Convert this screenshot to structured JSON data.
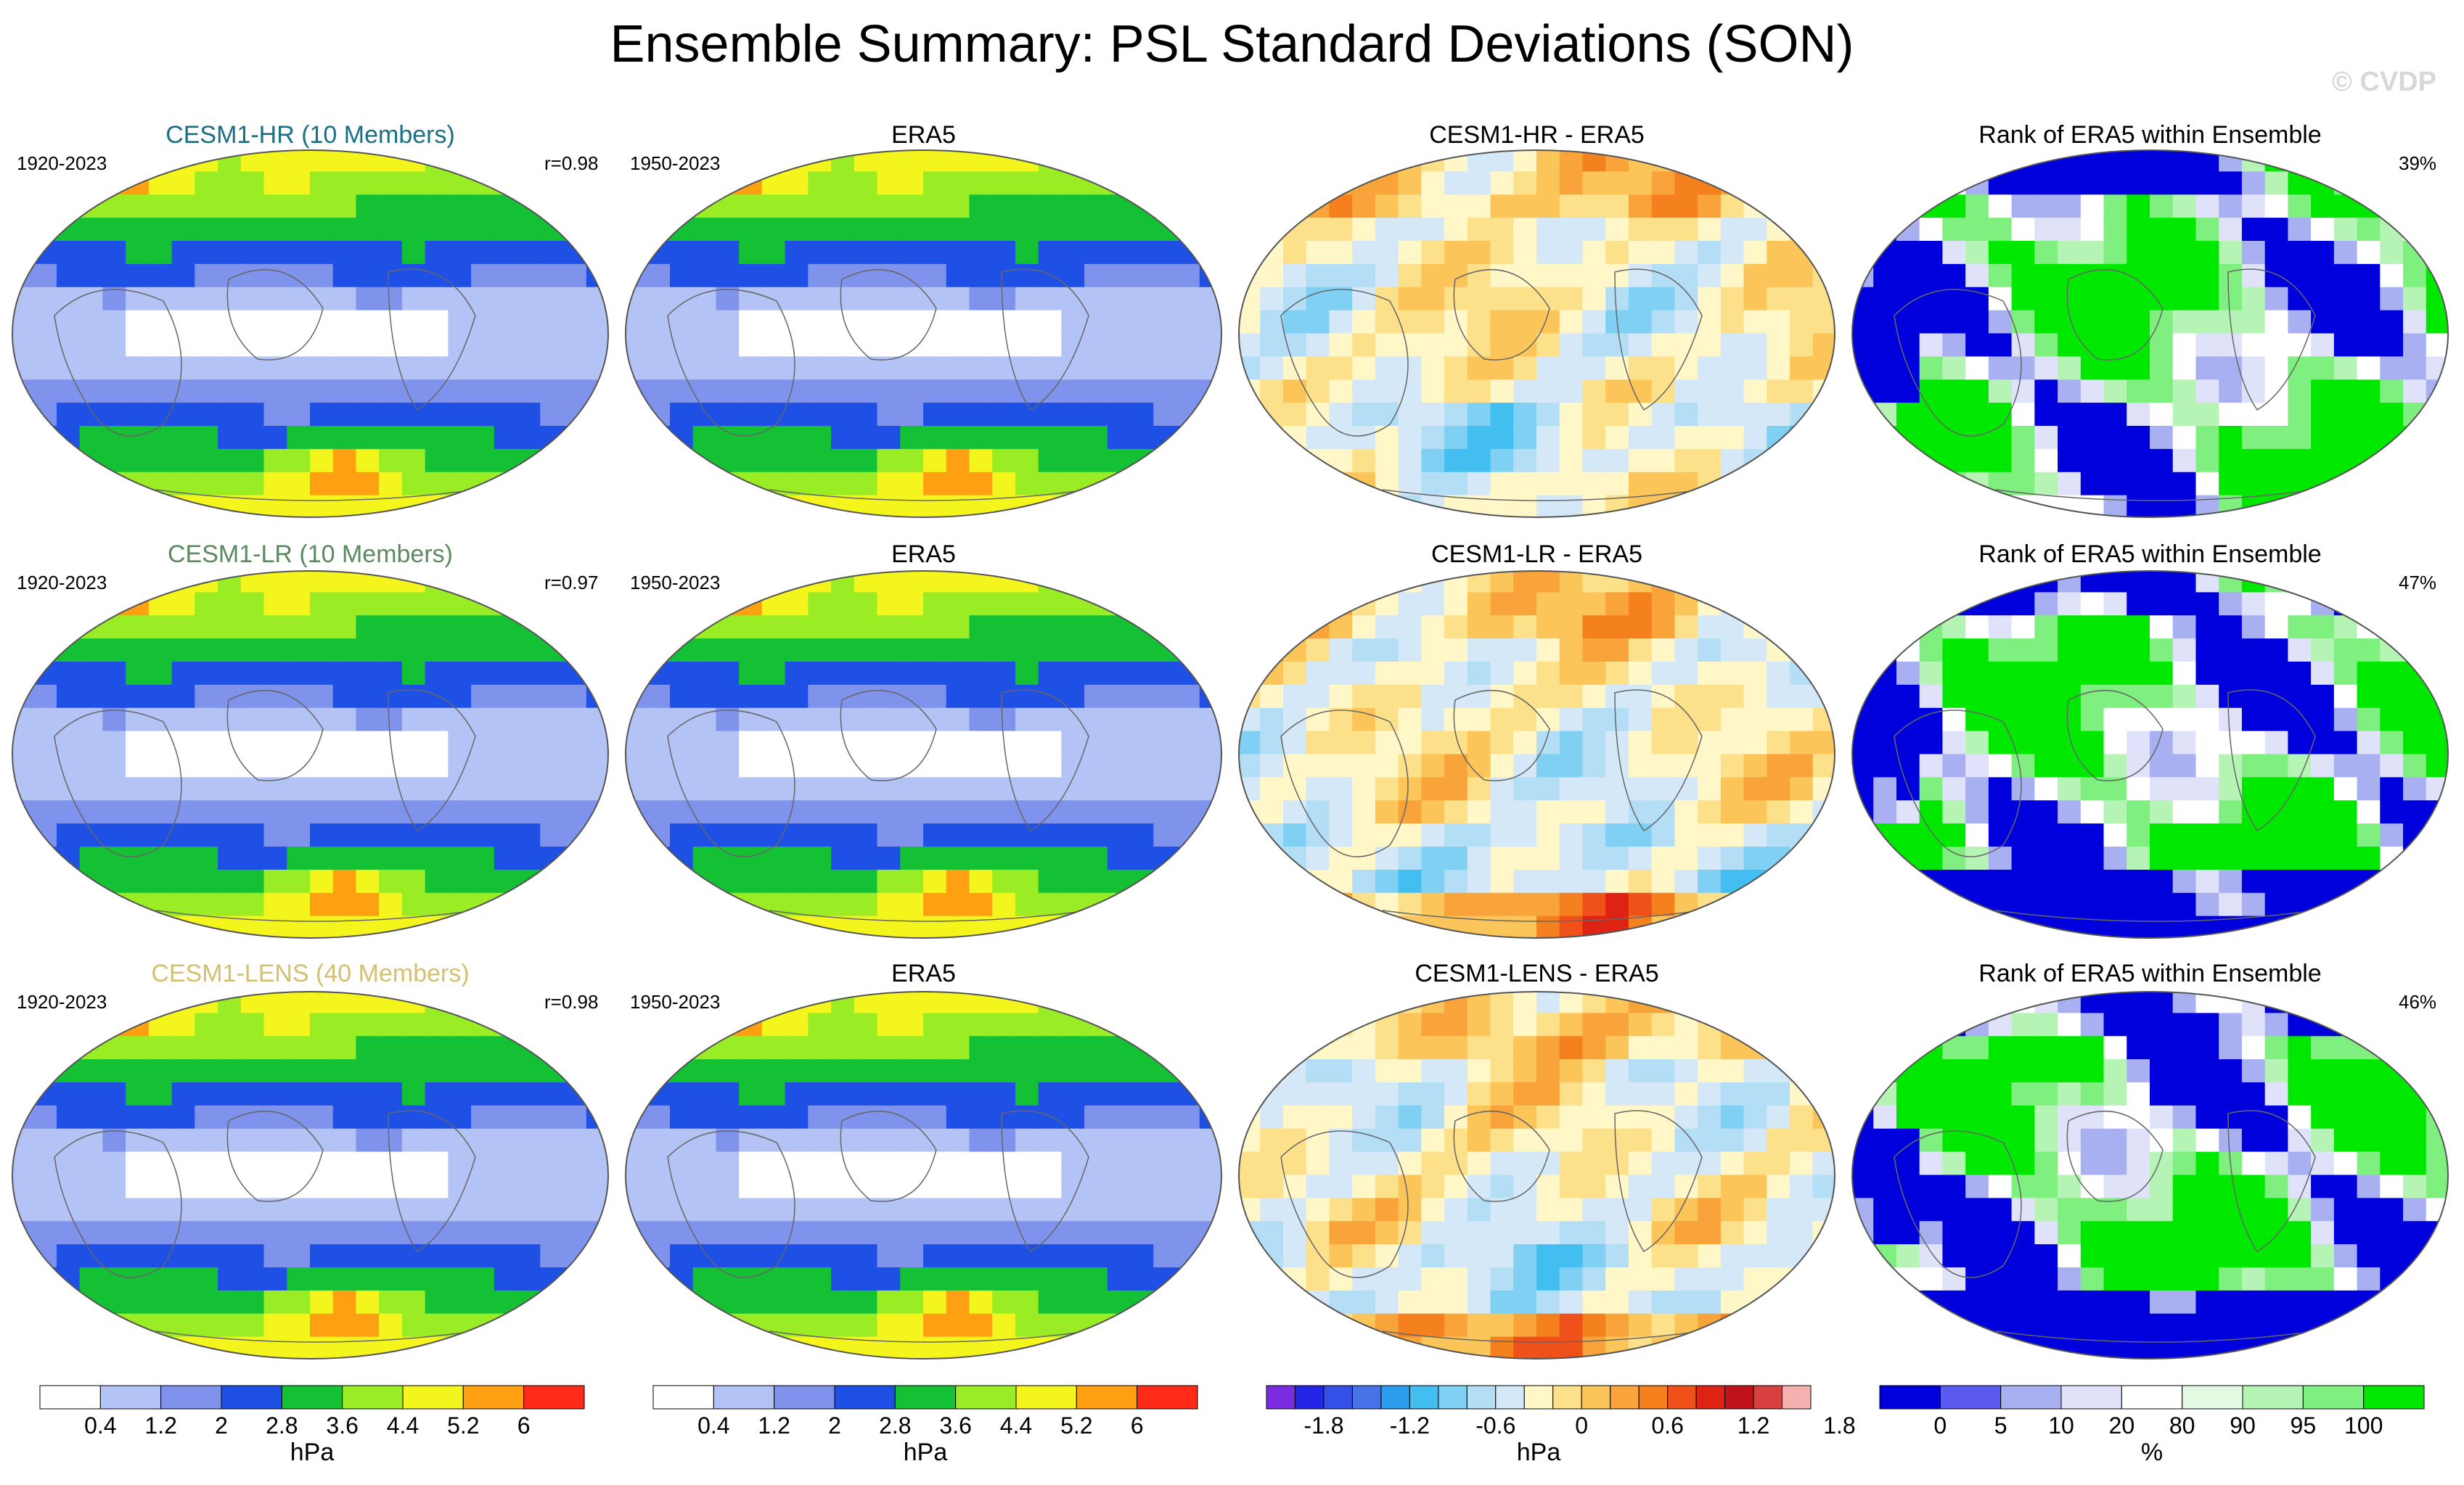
{
  "title": "Ensemble Summary: PSL Standard Deviations (SON)",
  "watermark": "© CVDP",
  "colors": {
    "stddev": [
      "#ffffff",
      "#b4c3f5",
      "#7f93ec",
      "#1e50e6",
      "#14c034",
      "#9aed24",
      "#f5f51e",
      "#ff9f12",
      "#ff2a18"
    ],
    "diff": [
      "#7b2be0",
      "#2424e6",
      "#3550e6",
      "#4872e8",
      "#2c9eee",
      "#42bff0",
      "#7fd0f2",
      "#b4def5",
      "#d4e8f7",
      "#fff7c8",
      "#fce08a",
      "#fbc55a",
      "#f9a43a",
      "#f5801e",
      "#f0501a",
      "#de2214",
      "#c0121c",
      "#d84040",
      "#f5b0b0"
    ],
    "rank": [
      "#0000dc",
      "#5a5af0",
      "#a8b0f2",
      "#e0e2fa",
      "#ffffff",
      "#e2fae2",
      "#b6f4b6",
      "#7ff07f",
      "#00e800"
    ]
  },
  "chart_data": [
    {
      "type": "heatmap",
      "title": "CESM1-HR (10 Members)",
      "title_color": "#1a6e85",
      "period": "1920-2023",
      "pattern_correlation": "r=0.98",
      "colormap": "stddev"
    },
    {
      "type": "heatmap",
      "title": "ERA5",
      "period": "1950-2023",
      "colormap": "stddev"
    },
    {
      "type": "heatmap",
      "title": "CESM1-HR - ERA5",
      "colormap": "diff"
    },
    {
      "type": "heatmap",
      "title": "Rank of ERA5 within Ensemble",
      "percent": "39%",
      "colormap": "rank"
    },
    {
      "type": "heatmap",
      "title": "CESM1-LR (10 Members)",
      "title_color": "#5c8a60",
      "period": "1920-2023",
      "pattern_correlation": "r=0.97",
      "colormap": "stddev"
    },
    {
      "type": "heatmap",
      "title": "ERA5",
      "period": "1950-2023",
      "colormap": "stddev"
    },
    {
      "type": "heatmap",
      "title": "CESM1-LR - ERA5",
      "colormap": "diff"
    },
    {
      "type": "heatmap",
      "title": "Rank of ERA5 within Ensemble",
      "percent": "47%",
      "colormap": "rank"
    },
    {
      "type": "heatmap",
      "title": "CESM1-LENS (40 Members)",
      "title_color": "#d4c070",
      "period": "1920-2023",
      "pattern_correlation": "r=0.98",
      "colormap": "stddev"
    },
    {
      "type": "heatmap",
      "title": "ERA5",
      "period": "1950-2023",
      "colormap": "stddev"
    },
    {
      "type": "heatmap",
      "title": "CESM1-LENS - ERA5",
      "colormap": "diff"
    },
    {
      "type": "heatmap",
      "title": "Rank of ERA5 within Ensemble",
      "percent": "46%",
      "colormap": "rank"
    }
  ],
  "colorbars": [
    {
      "ticks": [
        "0.4",
        "1.2",
        "2",
        "2.8",
        "3.6",
        "4.4",
        "5.2",
        "6"
      ],
      "label": "hPa",
      "colormap": "stddev"
    },
    {
      "ticks": [
        "0.4",
        "1.2",
        "2",
        "2.8",
        "3.6",
        "4.4",
        "5.2",
        "6"
      ],
      "label": "hPa",
      "colormap": "stddev"
    },
    {
      "ticks": [
        "-1.8",
        "-1.2",
        "-0.6",
        "0",
        "0.6",
        "1.2",
        "1.8"
      ],
      "label": "hPa",
      "colormap": "diff"
    },
    {
      "ticks": [
        "0",
        "5",
        "10",
        "20",
        "80",
        "90",
        "95",
        "100"
      ],
      "label": "%",
      "colormap": "rank"
    }
  ]
}
